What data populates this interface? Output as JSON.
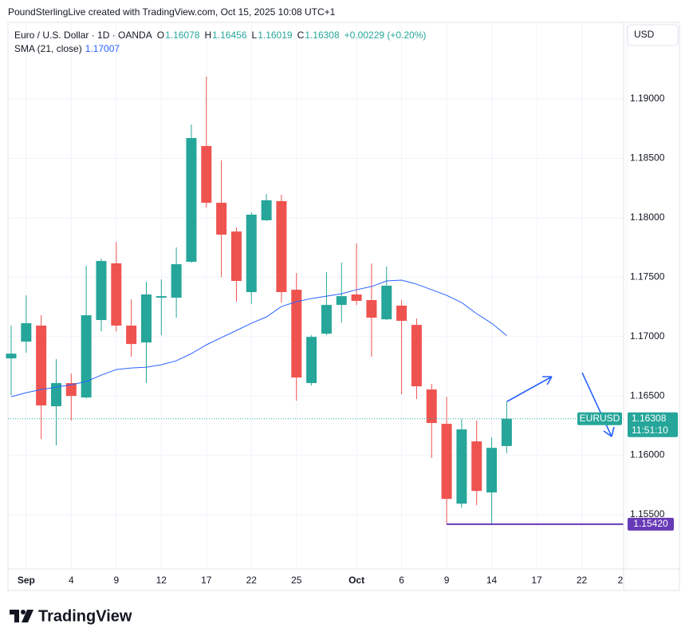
{
  "header": "PoundSterlingLive created with TradingView.com, Oct 15, 2025 10:08 UTC+1",
  "legend": {
    "symbol": "Euro / U.S. Dollar · 1D · OANDA",
    "items": [
      {
        "key": "O",
        "value": 1.16078
      },
      {
        "key": "H",
        "value": 1.16456
      },
      {
        "key": "L",
        "value": 1.16019
      },
      {
        "key": "C",
        "value": 1.16308
      }
    ],
    "change": "+0.00229 (+0.20%)",
    "sma_label": "SMA (21, close)",
    "sma_value": 1.17007
  },
  "currency": "USD",
  "footer_brand": "TradingView",
  "chart_data": {
    "type": "candlestick",
    "categories": [
      null,
      "Sep",
      null,
      null,
      "4",
      null,
      null,
      "9",
      null,
      null,
      "12",
      null,
      null,
      "17",
      null,
      null,
      "22",
      null,
      null,
      "25",
      null,
      null,
      null,
      "Oct",
      null,
      null,
      "6",
      null,
      null,
      "9",
      null,
      null,
      "14",
      null,
      null,
      "17",
      null,
      null,
      "22",
      null,
      null,
      "2"
    ],
    "open": [
      1.16816,
      1.16957,
      1.17092,
      1.16413,
      1.16608,
      1.16487,
      1.17139,
      1.17616,
      1.17092,
      1.1695,
      1.17327,
      1.17327,
      1.17629,
      1.18604,
      1.18126,
      1.17884,
      1.17374,
      1.17979,
      1.1814,
      1.17394,
      1.16608,
      1.17024,
      1.17266,
      1.17354,
      1.17307,
      1.17145,
      1.1726,
      1.17098,
      1.16554,
      1.16265,
      1.15593,
      1.16117,
      1.15687,
      1.16078,
      null,
      null,
      null,
      null,
      null,
      null,
      null,
      null
    ],
    "high": [
      1.17092,
      1.17347,
      1.17179,
      1.16809,
      1.16688,
      1.17596,
      1.17656,
      1.17797,
      1.17313,
      1.17461,
      1.17481,
      1.1775,
      1.18785,
      1.19188,
      1.18483,
      1.17918,
      1.18046,
      1.182,
      1.18194,
      1.17535,
      1.17011,
      1.17542,
      1.17622,
      1.17784,
      1.17616,
      1.17589,
      1.17307,
      1.17152,
      1.16601,
      1.16493,
      1.16305,
      1.16292,
      1.16151,
      1.16456,
      null,
      null,
      null,
      null,
      null,
      null,
      null,
      null
    ],
    "low": [
      1.16507,
      1.16863,
      1.16137,
      1.16083,
      1.16292,
      1.1648,
      1.17044,
      1.17044,
      1.16829,
      1.16608,
      1.17011,
      1.17159,
      1.17622,
      1.18086,
      1.17501,
      1.17293,
      1.17273,
      1.17972,
      1.17286,
      1.1646,
      1.16587,
      1.17011,
      1.17118,
      1.17266,
      1.16829,
      1.17139,
      1.16514,
      1.16473,
      1.15976,
      1.1542,
      1.15559,
      1.1558,
      1.1542,
      1.16019,
      null,
      null,
      null,
      null,
      null,
      null,
      null,
      null
    ],
    "close": [
      1.16856,
      1.17112,
      1.1642,
      1.16608,
      1.165,
      1.17179,
      1.17636,
      1.17092,
      1.16937,
      1.17354,
      1.1734,
      1.17609,
      1.18671,
      1.18126,
      1.17858,
      1.17468,
      1.18026,
      1.18147,
      1.17374,
      1.16655,
      1.16997,
      1.17266,
      1.1734,
      1.173,
      1.17159,
      1.17428,
      1.17132,
      1.16581,
      1.16272,
      1.15633,
      1.16218,
      1.157,
      1.16063,
      1.16308,
      null,
      null,
      null,
      null,
      null,
      null,
      null,
      null
    ],
    "up_color": "#26a69a",
    "down_color": "#ef5350",
    "sma": {
      "name": "SMA (21, close)",
      "color": "#2962ff",
      "values": [
        1.16493,
        1.16527,
        1.16554,
        1.16574,
        1.16594,
        1.16621,
        1.16675,
        1.16722,
        1.16735,
        1.16742,
        1.16762,
        1.16796,
        1.16856,
        1.1693,
        1.16991,
        1.17051,
        1.17112,
        1.17165,
        1.17253,
        1.17293,
        1.1732,
        1.1734,
        1.1736,
        1.17394,
        1.17421,
        1.17468,
        1.17475,
        1.17441,
        1.17394,
        1.17347,
        1.17286,
        1.17192,
        1.17112,
        1.17007,
        null,
        null,
        null,
        null,
        null,
        null,
        null,
        null
      ]
    },
    "ylim": [
      1.15043,
      1.19645
    ],
    "yticks": [
      {
        "value": 1.155,
        "label": "1.15500"
      },
      {
        "value": 1.16,
        "label": "1.16000"
      },
      {
        "value": 1.165,
        "label": "1.16500"
      },
      {
        "value": 1.17,
        "label": "1.17000"
      },
      {
        "value": 1.175,
        "label": "1.17500"
      },
      {
        "value": 1.18,
        "label": "1.18000"
      },
      {
        "value": 1.185,
        "label": "1.18500"
      },
      {
        "value": 1.19,
        "label": "1.19000"
      }
    ],
    "grid": true,
    "last_price": {
      "symbol": "EURUSD",
      "value": 1.16308,
      "countdown": "11:51:10"
    },
    "level_line": {
      "value": 1.1542,
      "label": "1.15420",
      "color": "#673ab7"
    }
  }
}
